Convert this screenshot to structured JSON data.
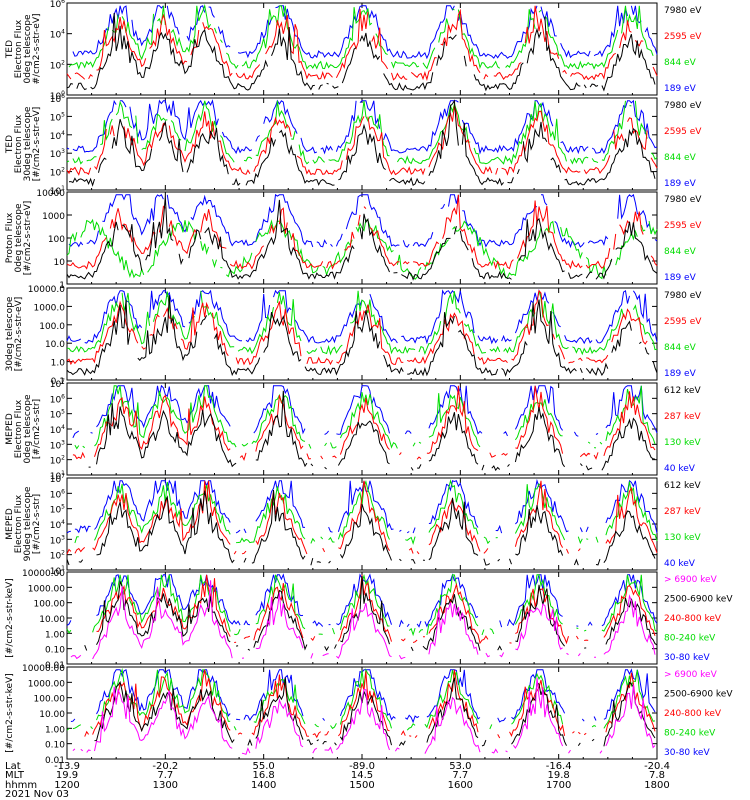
{
  "colors": {
    "blue": "#0000ff",
    "red": "#ff0000",
    "green": "#00dd00",
    "black": "#000000",
    "magenta": "#ff00ff"
  },
  "chart_data": [
    {
      "type": "line",
      "ylabel": [
        "TED",
        "Electron Flux",
        "0deg telescope",
        "#/cm2-s-str-eV]"
      ],
      "y_ticks": [
        "10^6",
        "10^4",
        "10^2",
        "10^0"
      ],
      "y_scale": "log",
      "ylim": [
        1,
        1000000
      ],
      "series": [
        {
          "name": "7980 eV",
          "color": "black"
        },
        {
          "name": "2595 eV",
          "color": "red"
        },
        {
          "name": "844 eV",
          "color": "green"
        },
        {
          "name": "189 eV",
          "color": "blue"
        }
      ]
    },
    {
      "type": "line",
      "ylabel": [
        "TED",
        "Electron Flux",
        "30deg telescope",
        "[#/cm2-s-str-eV]"
      ],
      "y_ticks": [
        "10^6",
        "10^5",
        "10^4",
        "10^3",
        "10^2",
        "10^1"
      ],
      "y_scale": "log",
      "ylim": [
        10,
        1000000
      ],
      "series": [
        {
          "name": "7980 eV",
          "color": "black"
        },
        {
          "name": "2595 eV",
          "color": "red"
        },
        {
          "name": "844 eV",
          "color": "green"
        },
        {
          "name": "189 eV",
          "color": "blue"
        }
      ]
    },
    {
      "type": "line",
      "ylabel": [
        "Proton Flux",
        "0deg telescope",
        "[#/cm2-s-str-eV]"
      ],
      "y_ticks": [
        "10000",
        "1000",
        "100",
        "10",
        "1"
      ],
      "y_scale": "log",
      "ylim": [
        1,
        10000
      ],
      "series": [
        {
          "name": "7980 eV",
          "color": "black"
        },
        {
          "name": "2595 eV",
          "color": "red"
        },
        {
          "name": "844 eV",
          "color": "green"
        },
        {
          "name": "189 eV",
          "color": "blue"
        }
      ]
    },
    {
      "type": "line",
      "ylabel": [
        "30deg telescope",
        "[#/cm2-s-str-eV]"
      ],
      "y_ticks": [
        "10000.0",
        "1000.0",
        "100.0",
        "10.0",
        "1.0",
        "0.1"
      ],
      "y_scale": "log",
      "ylim": [
        0.1,
        10000
      ],
      "series": [
        {
          "name": "7980 eV",
          "color": "black"
        },
        {
          "name": "2595 eV",
          "color": "red"
        },
        {
          "name": "844 eV",
          "color": "green"
        },
        {
          "name": "189 eV",
          "color": "blue"
        }
      ]
    },
    {
      "type": "line",
      "ylabel": [
        "MEPED",
        "Electron Flux",
        "0deg telescope",
        "[#/cm2-s-str]"
      ],
      "y_ticks": [
        "10^7",
        "10^6",
        "10^5",
        "10^4",
        "10^3",
        "10^2",
        "10^1"
      ],
      "y_scale": "log",
      "ylim": [
        10,
        10000000
      ],
      "series": [
        {
          "name": "612 keV",
          "color": "black"
        },
        {
          "name": "287 keV",
          "color": "red"
        },
        {
          "name": "130 keV",
          "color": "green"
        },
        {
          "name": "40 keV",
          "color": "blue"
        }
      ]
    },
    {
      "type": "line",
      "ylabel": [
        "MEPED",
        "Electron Flux",
        "90deg telescope",
        "[#/cm2-s-str]"
      ],
      "y_ticks": [
        "10^7",
        "10^6",
        "10^5",
        "10^4",
        "10^3",
        "10^2",
        "10^1"
      ],
      "y_scale": "log",
      "ylim": [
        10,
        10000000
      ],
      "series": [
        {
          "name": "612 keV",
          "color": "black"
        },
        {
          "name": "287 keV",
          "color": "red"
        },
        {
          "name": "130 keV",
          "color": "green"
        },
        {
          "name": "40 keV",
          "color": "blue"
        }
      ]
    },
    {
      "type": "line",
      "ylabel": [
        "[#/cm2-s-str-keV]"
      ],
      "y_ticks": [
        "10000.00",
        "1000.00",
        "100.00",
        "10.00",
        "1.00",
        "0.10",
        "0.01"
      ],
      "y_scale": "log",
      "ylim": [
        0.01,
        10000
      ],
      "series": [
        {
          "name": "> 6900 keV",
          "color": "magenta"
        },
        {
          "name": "2500-6900 keV",
          "color": "black"
        },
        {
          "name": "240-800 keV",
          "color": "red"
        },
        {
          "name": "80-240 keV",
          "color": "green"
        },
        {
          "name": "30-80 keV",
          "color": "blue"
        }
      ]
    },
    {
      "type": "line",
      "ylabel": [
        "[#/cm2-s-str-keV]"
      ],
      "y_ticks": [
        "10000.00",
        "1000.00",
        "100.00",
        "10.00",
        "1.00",
        "0.10",
        "0.01"
      ],
      "y_scale": "log",
      "ylim": [
        0.01,
        10000
      ],
      "series": [
        {
          "name": "> 6900 keV",
          "color": "magenta"
        },
        {
          "name": "2500-6900 keV",
          "color": "black"
        },
        {
          "name": "240-800 keV",
          "color": "red"
        },
        {
          "name": "80-240 keV",
          "color": "green"
        },
        {
          "name": "30-80 keV",
          "color": "blue"
        }
      ]
    }
  ],
  "x_axis": {
    "row_labels": [
      "Lat",
      "MLT",
      "hhmm"
    ],
    "date": "2021 Nov 03",
    "lat": [
      "-13.9",
      "-20.2",
      "55.0",
      "-89.0",
      "53.0",
      "-16.4",
      "-20.4"
    ],
    "mlt": [
      "19.9",
      "7.7",
      "16.8",
      "14.5",
      "7.7",
      "19.8",
      "7.8"
    ],
    "hhmm": [
      "1200",
      "1300",
      "1400",
      "1500",
      "1600",
      "1700",
      "1800"
    ]
  }
}
